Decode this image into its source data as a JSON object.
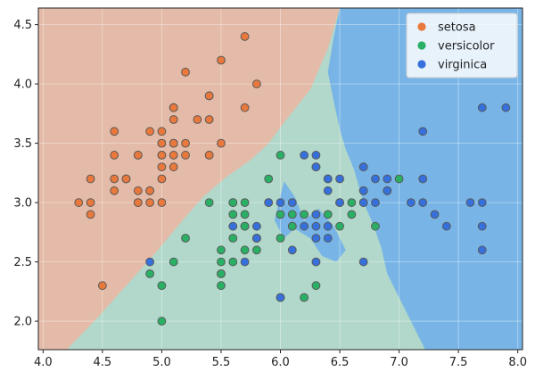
{
  "chart_data": {
    "type": "scatter",
    "title": "",
    "xlabel": "",
    "ylabel": "",
    "xlim": [
      3.96,
      8.04
    ],
    "ylim": [
      1.76,
      4.64
    ],
    "xticks": [
      4.0,
      4.5,
      5.0,
      5.5,
      6.0,
      6.5,
      7.0,
      7.5,
      8.0
    ],
    "yticks": [
      2.0,
      2.5,
      3.0,
      3.5,
      4.0,
      4.5
    ],
    "grid": true,
    "legend_position": "top-right",
    "background_regions": [
      {
        "class": "setosa",
        "color": "#e4bba8",
        "polygon": [
          [
            3.96,
            1.76
          ],
          [
            4.2,
            1.76
          ],
          [
            4.45,
            2.02
          ],
          [
            4.7,
            2.3
          ],
          [
            4.95,
            2.58
          ],
          [
            5.15,
            2.82
          ],
          [
            5.35,
            3.05
          ],
          [
            5.55,
            3.22
          ],
          [
            5.75,
            3.36
          ],
          [
            5.9,
            3.5
          ],
          [
            6.05,
            3.7
          ],
          [
            6.25,
            3.95
          ],
          [
            6.4,
            4.3
          ],
          [
            6.5,
            4.64
          ],
          [
            3.96,
            4.64
          ]
        ]
      },
      {
        "class": "virginica",
        "color": "#78b5e6",
        "polygon": [
          [
            6.5,
            4.64
          ],
          [
            8.04,
            4.64
          ],
          [
            8.04,
            1.76
          ],
          [
            7.22,
            1.76
          ],
          [
            7.05,
            2.1
          ],
          [
            6.9,
            2.4
          ],
          [
            6.85,
            2.62
          ],
          [
            6.78,
            2.82
          ],
          [
            6.7,
            3.0
          ],
          [
            6.62,
            3.28
          ],
          [
            6.55,
            3.45
          ],
          [
            6.5,
            3.62
          ],
          [
            6.45,
            3.85
          ],
          [
            6.4,
            4.1
          ],
          [
            6.45,
            4.4
          ]
        ]
      },
      {
        "class": "virginica",
        "color": "#78b5e6",
        "polygon": [
          [
            5.95,
            2.85
          ],
          [
            6.03,
            3.18
          ],
          [
            6.12,
            3.05
          ],
          [
            6.2,
            2.85
          ],
          [
            6.32,
            2.95
          ],
          [
            6.45,
            2.8
          ],
          [
            6.55,
            2.6
          ],
          [
            6.47,
            2.5
          ],
          [
            6.35,
            2.55
          ],
          [
            6.25,
            2.7
          ],
          [
            6.12,
            2.78
          ],
          [
            6.03,
            2.7
          ]
        ]
      }
    ],
    "series": [
      {
        "name": "setosa",
        "color": "#e8783c",
        "points": [
          [
            5.1,
            3.5
          ],
          [
            4.9,
            3.0
          ],
          [
            4.7,
            3.2
          ],
          [
            4.6,
            3.1
          ],
          [
            5.0,
            3.6
          ],
          [
            5.4,
            3.9
          ],
          [
            4.6,
            3.4
          ],
          [
            5.0,
            3.4
          ],
          [
            4.4,
            2.9
          ],
          [
            4.9,
            3.1
          ],
          [
            5.4,
            3.7
          ],
          [
            4.8,
            3.4
          ],
          [
            4.8,
            3.0
          ],
          [
            4.3,
            3.0
          ],
          [
            5.8,
            4.0
          ],
          [
            5.7,
            4.4
          ],
          [
            5.4,
            3.9
          ],
          [
            5.1,
            3.5
          ],
          [
            5.7,
            3.8
          ],
          [
            5.1,
            3.8
          ],
          [
            5.4,
            3.4
          ],
          [
            5.1,
            3.7
          ],
          [
            4.6,
            3.6
          ],
          [
            5.1,
            3.3
          ],
          [
            4.8,
            3.4
          ],
          [
            5.0,
            3.0
          ],
          [
            5.0,
            3.4
          ],
          [
            5.2,
            3.5
          ],
          [
            5.2,
            3.4
          ],
          [
            4.7,
            3.2
          ],
          [
            4.8,
            3.1
          ],
          [
            5.4,
            3.4
          ],
          [
            5.2,
            4.1
          ],
          [
            5.5,
            4.2
          ],
          [
            4.9,
            3.1
          ],
          [
            5.0,
            3.2
          ],
          [
            5.5,
            3.5
          ],
          [
            4.9,
            3.6
          ],
          [
            4.4,
            3.0
          ],
          [
            5.1,
            3.4
          ],
          [
            5.0,
            3.5
          ],
          [
            4.5,
            2.3
          ],
          [
            4.4,
            3.2
          ],
          [
            5.0,
            3.5
          ],
          [
            5.1,
            3.8
          ],
          [
            4.8,
            3.0
          ],
          [
            5.1,
            3.8
          ],
          [
            4.6,
            3.2
          ],
          [
            5.3,
            3.7
          ],
          [
            5.0,
            3.3
          ]
        ]
      },
      {
        "name": "versicolor",
        "color": "#29b065",
        "points": [
          [
            7.0,
            3.2
          ],
          [
            6.4,
            3.2
          ],
          [
            6.9,
            3.1
          ],
          [
            5.5,
            2.3
          ],
          [
            6.5,
            2.8
          ],
          [
            5.7,
            2.8
          ],
          [
            6.3,
            3.3
          ],
          [
            4.9,
            2.4
          ],
          [
            6.6,
            2.9
          ],
          [
            5.2,
            2.7
          ],
          [
            5.0,
            2.0
          ],
          [
            5.9,
            3.0
          ],
          [
            6.0,
            2.2
          ],
          [
            6.1,
            2.9
          ],
          [
            5.6,
            2.9
          ],
          [
            6.7,
            3.1
          ],
          [
            5.6,
            3.0
          ],
          [
            5.8,
            2.7
          ],
          [
            6.2,
            2.2
          ],
          [
            5.6,
            2.5
          ],
          [
            5.9,
            3.2
          ],
          [
            6.1,
            2.8
          ],
          [
            6.3,
            2.5
          ],
          [
            6.1,
            2.8
          ],
          [
            6.4,
            2.9
          ],
          [
            6.6,
            3.0
          ],
          [
            6.8,
            2.8
          ],
          [
            6.7,
            3.0
          ],
          [
            6.0,
            2.9
          ],
          [
            5.7,
            2.6
          ],
          [
            5.5,
            2.4
          ],
          [
            5.5,
            2.4
          ],
          [
            5.8,
            2.7
          ],
          [
            6.0,
            2.7
          ],
          [
            5.4,
            3.0
          ],
          [
            6.0,
            3.4
          ],
          [
            6.7,
            3.1
          ],
          [
            6.3,
            2.3
          ],
          [
            5.6,
            3.0
          ],
          [
            5.5,
            2.5
          ],
          [
            5.5,
            2.6
          ],
          [
            6.1,
            3.0
          ],
          [
            5.8,
            2.6
          ],
          [
            5.0,
            2.3
          ],
          [
            5.6,
            2.7
          ],
          [
            5.7,
            3.0
          ],
          [
            5.7,
            2.9
          ],
          [
            6.2,
            2.9
          ],
          [
            5.1,
            2.5
          ],
          [
            5.7,
            2.8
          ]
        ]
      },
      {
        "name": "virginica",
        "color": "#3570dc",
        "points": [
          [
            6.3,
            3.3
          ],
          [
            5.8,
            2.7
          ],
          [
            7.1,
            3.0
          ],
          [
            6.3,
            2.9
          ],
          [
            6.5,
            3.0
          ],
          [
            7.6,
            3.0
          ],
          [
            4.9,
            2.5
          ],
          [
            7.3,
            2.9
          ],
          [
            6.7,
            2.5
          ],
          [
            7.2,
            3.6
          ],
          [
            6.5,
            3.2
          ],
          [
            6.4,
            2.7
          ],
          [
            6.8,
            3.0
          ],
          [
            5.7,
            2.5
          ],
          [
            5.8,
            2.8
          ],
          [
            6.4,
            3.2
          ],
          [
            6.5,
            3.0
          ],
          [
            7.7,
            3.8
          ],
          [
            7.7,
            2.6
          ],
          [
            6.0,
            2.2
          ],
          [
            6.9,
            3.2
          ],
          [
            5.6,
            2.8
          ],
          [
            7.7,
            2.8
          ],
          [
            6.3,
            2.7
          ],
          [
            6.7,
            3.3
          ],
          [
            7.2,
            3.2
          ],
          [
            6.2,
            2.8
          ],
          [
            6.1,
            3.0
          ],
          [
            6.4,
            2.8
          ],
          [
            7.2,
            3.0
          ],
          [
            7.4,
            2.8
          ],
          [
            7.9,
            3.8
          ],
          [
            6.4,
            2.8
          ],
          [
            6.3,
            2.8
          ],
          [
            6.1,
            2.6
          ],
          [
            7.7,
            3.0
          ],
          [
            6.3,
            3.4
          ],
          [
            6.4,
            3.1
          ],
          [
            6.0,
            3.0
          ],
          [
            6.9,
            3.1
          ],
          [
            6.7,
            3.1
          ],
          [
            6.9,
            3.1
          ],
          [
            5.8,
            2.7
          ],
          [
            6.8,
            3.2
          ],
          [
            6.7,
            3.3
          ],
          [
            6.7,
            3.0
          ],
          [
            6.3,
            2.5
          ],
          [
            6.5,
            3.0
          ],
          [
            6.2,
            3.4
          ],
          [
            5.9,
            3.0
          ]
        ]
      }
    ]
  }
}
